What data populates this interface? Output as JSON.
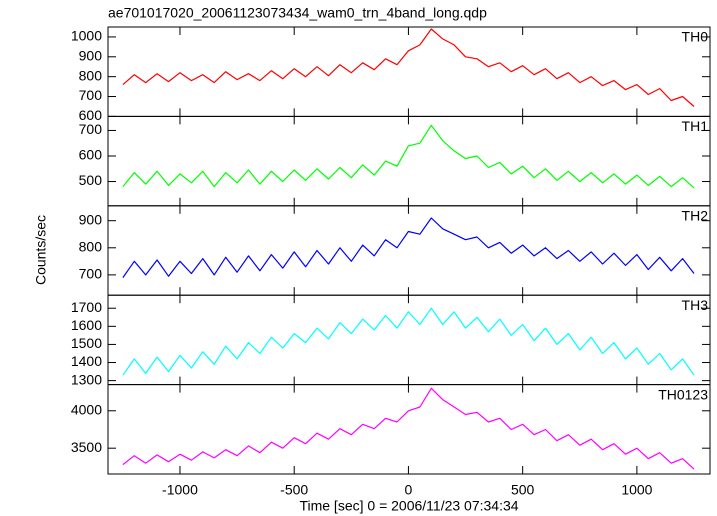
{
  "chart_data": {
    "type": "line",
    "title": "ae701017020_20061123073434_wam0_trn_4band_long.qdp",
    "xlabel": "Time [sec] 0 = 2006/11/23 07:34:34",
    "ylabel": "Counts/sec",
    "xlim": [
      -1315,
      1320
    ],
    "xticks": [
      -1000,
      -500,
      0,
      500,
      1000
    ],
    "x": [
      -1250,
      -1200,
      -1150,
      -1100,
      -1050,
      -1000,
      -950,
      -900,
      -850,
      -800,
      -750,
      -700,
      -650,
      -600,
      -550,
      -500,
      -450,
      -400,
      -350,
      -300,
      -250,
      -200,
      -150,
      -100,
      -50,
      0,
      50,
      100,
      150,
      200,
      250,
      300,
      350,
      400,
      450,
      500,
      550,
      600,
      650,
      700,
      750,
      800,
      850,
      900,
      950,
      1000,
      1050,
      1100,
      1150,
      1200,
      1250
    ],
    "series": [
      {
        "name": "TH0",
        "color": "#ff0000",
        "ylim": [
          600,
          1050
        ],
        "yticks": [
          600,
          700,
          800,
          900,
          1000
        ],
        "values": [
          760,
          810,
          770,
          815,
          775,
          820,
          780,
          810,
          770,
          825,
          785,
          815,
          780,
          830,
          790,
          840,
          800,
          850,
          805,
          860,
          820,
          870,
          835,
          890,
          860,
          930,
          960,
          1040,
          990,
          960,
          900,
          890,
          850,
          870,
          825,
          855,
          810,
          840,
          790,
          820,
          770,
          800,
          755,
          780,
          735,
          760,
          710,
          740,
          680,
          700,
          650
        ]
      },
      {
        "name": "TH1",
        "color": "#00ff00",
        "ylim": [
          405,
          755
        ],
        "yticks": [
          500,
          600,
          700
        ],
        "values": [
          480,
          535,
          490,
          540,
          485,
          530,
          495,
          540,
          480,
          535,
          495,
          545,
          490,
          540,
          500,
          545,
          505,
          550,
          510,
          555,
          515,
          565,
          525,
          580,
          560,
          640,
          650,
          720,
          660,
          620,
          590,
          600,
          555,
          575,
          530,
          560,
          515,
          550,
          505,
          540,
          500,
          535,
          495,
          530,
          490,
          525,
          485,
          520,
          480,
          515,
          475
        ]
      },
      {
        "name": "TH2",
        "color": "#0000ff",
        "ylim": [
          625,
          955
        ],
        "yticks": [
          700,
          800,
          900
        ],
        "values": [
          690,
          750,
          700,
          755,
          695,
          750,
          705,
          760,
          700,
          765,
          710,
          770,
          715,
          775,
          725,
          785,
          730,
          790,
          740,
          800,
          750,
          810,
          770,
          830,
          800,
          860,
          850,
          910,
          870,
          850,
          830,
          840,
          800,
          820,
          780,
          810,
          770,
          800,
          760,
          790,
          750,
          785,
          740,
          780,
          735,
          775,
          720,
          765,
          715,
          760,
          705
        ]
      },
      {
        "name": "TH3",
        "color": "#00ffff",
        "ylim": [
          1278,
          1772
        ],
        "yticks": [
          1300,
          1400,
          1500,
          1600,
          1700
        ],
        "values": [
          1330,
          1420,
          1340,
          1430,
          1350,
          1440,
          1370,
          1460,
          1390,
          1490,
          1420,
          1510,
          1450,
          1540,
          1480,
          1560,
          1510,
          1590,
          1530,
          1620,
          1560,
          1640,
          1580,
          1660,
          1590,
          1680,
          1610,
          1700,
          1610,
          1680,
          1590,
          1650,
          1570,
          1640,
          1550,
          1610,
          1520,
          1590,
          1500,
          1560,
          1470,
          1540,
          1450,
          1510,
          1420,
          1480,
          1390,
          1450,
          1360,
          1420,
          1330
        ]
      },
      {
        "name": "TH0123",
        "color": "#ff00ff",
        "ylim": [
          3155,
          4350
        ],
        "yticks": [
          3500,
          4000
        ],
        "values": [
          3280,
          3400,
          3300,
          3410,
          3320,
          3420,
          3340,
          3450,
          3370,
          3480,
          3400,
          3530,
          3440,
          3580,
          3500,
          3640,
          3560,
          3700,
          3620,
          3760,
          3680,
          3820,
          3760,
          3900,
          3850,
          4000,
          4050,
          4300,
          4150,
          4050,
          3950,
          3980,
          3850,
          3900,
          3750,
          3820,
          3680,
          3750,
          3600,
          3680,
          3540,
          3620,
          3480,
          3560,
          3420,
          3500,
          3360,
          3440,
          3300,
          3360,
          3220
        ]
      }
    ]
  }
}
